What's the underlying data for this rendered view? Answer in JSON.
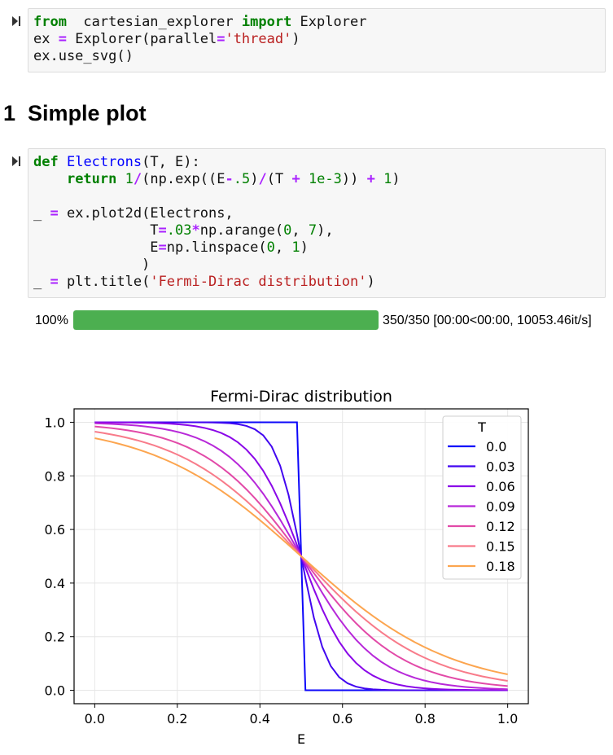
{
  "cells": [
    {
      "lines": [
        [
          [
            "kw",
            "from"
          ],
          [
            "",
            "  cartesian_explorer "
          ],
          [
            "kw",
            "import"
          ],
          [
            "",
            " Explorer"
          ]
        ],
        [
          [
            "",
            "ex "
          ],
          [
            "op",
            "="
          ],
          [
            "",
            " Explorer(parallel"
          ],
          [
            "op",
            "="
          ],
          [
            "str",
            "'thread'"
          ],
          [
            "",
            ")"
          ]
        ],
        [
          [
            "",
            "ex.use_svg()"
          ]
        ]
      ]
    },
    {
      "lines": [
        [
          [
            "kw",
            "def"
          ],
          [
            "",
            " "
          ],
          [
            "fn",
            "Electrons"
          ],
          [
            "",
            "(T, E):"
          ]
        ],
        [
          [
            "",
            "    "
          ],
          [
            "kw",
            "return"
          ],
          [
            "",
            " "
          ],
          [
            "num",
            "1"
          ],
          [
            "op",
            "/"
          ],
          [
            "",
            "(np.exp((E"
          ],
          [
            "op",
            "-"
          ],
          [
            "num",
            ".5"
          ],
          [
            "",
            ")"
          ],
          [
            "op",
            "/"
          ],
          [
            "",
            "(T "
          ],
          [
            "op",
            "+"
          ],
          [
            "",
            " "
          ],
          [
            "num",
            "1e-3"
          ],
          [
            "",
            "))"
          ],
          [
            "",
            " "
          ],
          [
            "op",
            "+"
          ],
          [
            "",
            " "
          ],
          [
            "num",
            "1"
          ],
          [
            "",
            ")"
          ]
        ],
        [
          [
            "",
            ""
          ]
        ],
        [
          [
            "",
            "_ "
          ],
          [
            "op",
            "="
          ],
          [
            "",
            " ex.plot2d(Electrons,"
          ]
        ],
        [
          [
            "",
            "              T"
          ],
          [
            "op",
            "="
          ],
          [
            "num",
            ".03"
          ],
          [
            "op",
            "*"
          ],
          [
            "",
            "np.arange("
          ],
          [
            "num",
            "0"
          ],
          [
            "",
            ", "
          ],
          [
            "num",
            "7"
          ],
          [
            "",
            "),"
          ]
        ],
        [
          [
            "",
            "              E"
          ],
          [
            "op",
            "="
          ],
          [
            "",
            "np.linspace("
          ],
          [
            "num",
            "0"
          ],
          [
            "",
            ", "
          ],
          [
            "num",
            "1"
          ],
          [
            "",
            ")"
          ]
        ],
        [
          [
            "",
            "             )"
          ]
        ],
        [
          [
            "",
            "_ "
          ],
          [
            "op",
            "="
          ],
          [
            "",
            " plt.title("
          ],
          [
            "str",
            "'Fermi-Dirac distribution'"
          ],
          [
            "",
            ")"
          ]
        ]
      ]
    }
  ],
  "heading": {
    "number": "1",
    "text": "Simple plot"
  },
  "progress": {
    "percent_label": "100%",
    "fraction": 1.0,
    "info": "350/350 [00:00<00:00, 10053.46it/s]"
  },
  "chart_data": {
    "type": "line",
    "title": "Fermi-Dirac distribution",
    "xlabel": "E",
    "ylabel": "",
    "xlim": [
      -0.05,
      1.05
    ],
    "ylim": [
      -0.05,
      1.05
    ],
    "xticks": [
      "0.0",
      "0.2",
      "0.4",
      "0.6",
      "0.8",
      "1.0"
    ],
    "yticks": [
      "0.0",
      "0.2",
      "0.4",
      "0.6",
      "0.8",
      "1.0"
    ],
    "grid": true,
    "legend": {
      "title": "T",
      "placement": "top-right"
    },
    "x_range": [
      0,
      1
    ],
    "points_per_series": 50,
    "series": [
      {
        "name": "0.0",
        "T": 0.0,
        "color": "#0d07fa"
      },
      {
        "name": "0.03",
        "T": 0.03,
        "color": "#4206f0"
      },
      {
        "name": "0.06",
        "T": 0.06,
        "color": "#8a07e8"
      },
      {
        "name": "0.09",
        "T": 0.09,
        "color": "#b728d9"
      },
      {
        "name": "0.12",
        "T": 0.12,
        "color": "#e24aa8"
      },
      {
        "name": "0.15",
        "T": 0.15,
        "color": "#f87b8a"
      },
      {
        "name": "0.18",
        "T": 0.18,
        "color": "#fca54f"
      }
    ]
  }
}
